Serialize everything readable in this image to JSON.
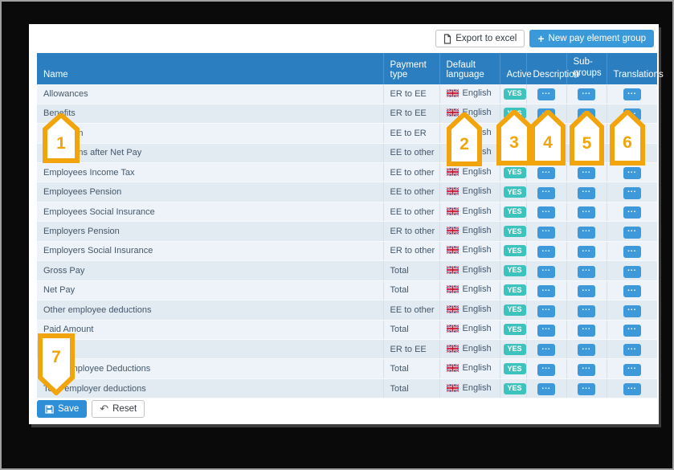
{
  "toolbar": {
    "export_label": "Export to excel",
    "new_group_plus": "+",
    "new_group_label": "New pay element group"
  },
  "table": {
    "headers": {
      "name": "Name",
      "payment_type": "Payment type",
      "default_language": "Default language",
      "active": "Active",
      "description": "Description",
      "sub_groups": "Sub-\ngroups",
      "translations": "Translations"
    },
    "dots": "...",
    "rows": [
      {
        "name": "Allowances",
        "payment_type": "ER to EE",
        "language": "English",
        "active": "YES"
      },
      {
        "name": "Benefits",
        "payment_type": "ER to EE",
        "language": "English",
        "active": "YES"
      },
      {
        "name": "Deduction",
        "payment_type": "EE to ER",
        "language": "English",
        "active": "YES"
      },
      {
        "name": "Deductions after Net Pay",
        "payment_type": "EE to other",
        "language": "English",
        "active": "YES"
      },
      {
        "name": "Employees Income Tax",
        "payment_type": "EE to other",
        "language": "English",
        "active": "YES"
      },
      {
        "name": "Employees Pension",
        "payment_type": "EE to other",
        "language": "English",
        "active": "YES"
      },
      {
        "name": "Employees Social Insurance",
        "payment_type": "EE to other",
        "language": "English",
        "active": "YES"
      },
      {
        "name": "Employers Pension",
        "payment_type": "ER to other",
        "language": "English",
        "active": "YES"
      },
      {
        "name": "Employers Social Insurance",
        "payment_type": "ER to other",
        "language": "English",
        "active": "YES"
      },
      {
        "name": "Gross Pay",
        "payment_type": "Total",
        "language": "English",
        "active": "YES"
      },
      {
        "name": "Net Pay",
        "payment_type": "Total",
        "language": "English",
        "active": "YES"
      },
      {
        "name": "Other employee deductions",
        "payment_type": "EE to other",
        "language": "English",
        "active": "YES"
      },
      {
        "name": "Paid Amount",
        "payment_type": "Total",
        "language": "English",
        "active": "YES"
      },
      {
        "name": "",
        "payment_type": "ER to EE",
        "language": "English",
        "active": "YES"
      },
      {
        "name": "Total Employee Deductions",
        "payment_type": "Total",
        "language": "English",
        "active": "YES"
      },
      {
        "name": "Total employer deductions",
        "payment_type": "Total",
        "language": "English",
        "active": "YES"
      }
    ]
  },
  "footer": {
    "save_label": "Save",
    "reset_label": "Reset"
  },
  "markers": [
    "1",
    "2",
    "3",
    "4",
    "5",
    "6",
    "7"
  ],
  "colors": {
    "header_bg": "#2b7fc0",
    "accent_blue": "#3a99d9",
    "badge_teal": "#3cc3bd",
    "marker_gold": "#F1A40B"
  }
}
